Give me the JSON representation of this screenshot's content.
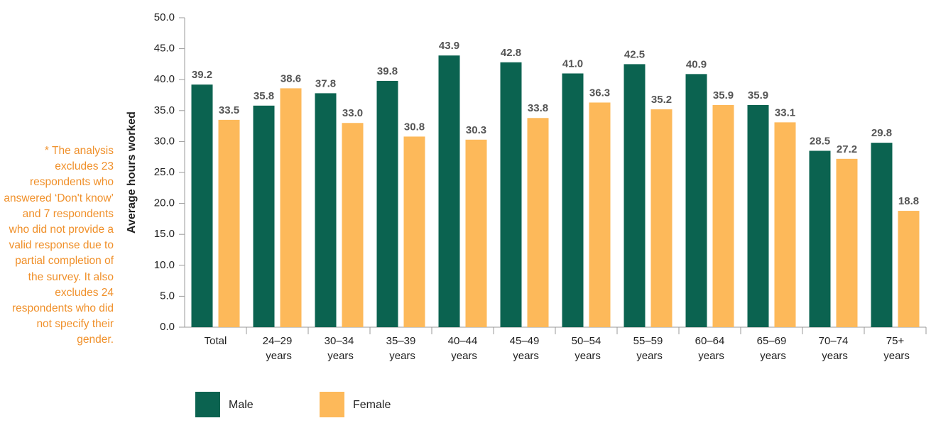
{
  "chart_data": {
    "type": "bar",
    "y_label": "Average hours worked",
    "note": "* The analysis excludes 23 respondents who answered ‘Don't know’ and 7 respondents who did not provide a valid response due to partial completion of the survey. It also excludes 24 respondents who did not specify their gender.",
    "categories": [
      "Total",
      "24–29 years",
      "30–34 years",
      "35–39 years",
      "40–44 years",
      "45–49 years",
      "50–54 years",
      "55–59 years",
      "60–64 years",
      "65–69 years",
      "70–74 years",
      "75+ years"
    ],
    "series": [
      {
        "name": "Male",
        "color": "#0b6350",
        "values": [
          39.2,
          35.8,
          37.8,
          39.8,
          43.9,
          42.8,
          41,
          42.5,
          40.9,
          35.9,
          28.5,
          29.8
        ],
        "value_labels": [
          "39.2",
          "35.8",
          "37.8",
          "39.8",
          "43.9",
          "42.8",
          "41.0",
          "42.5",
          "40.9",
          "35.9",
          "28.5",
          "29.8"
        ]
      },
      {
        "name": "Female",
        "color": "#fdb95a",
        "values": [
          33.5,
          38.6,
          33,
          30.8,
          30.3,
          33.8,
          36.3,
          35.2,
          35.9,
          33.1,
          27.2,
          18.8
        ],
        "value_labels": [
          "33.5",
          "38.6",
          "33.0",
          "30.8",
          "30.3",
          "33.8",
          "36.3",
          "35.2",
          "35.9",
          "33.1",
          "27.2",
          "18.8"
        ]
      }
    ],
    "ylim": [
      0,
      50
    ],
    "yticks": [
      {
        "value": 0,
        "label": "0.0"
      },
      {
        "value": 5,
        "label": "5.0"
      },
      {
        "value": 10,
        "label": "10.0"
      },
      {
        "value": 15,
        "label": "15.0"
      },
      {
        "value": 20,
        "label": "20.0"
      },
      {
        "value": 25,
        "label": "25.0"
      },
      {
        "value": 30,
        "label": "30.0"
      },
      {
        "value": 35,
        "label": "35.0"
      },
      {
        "value": 40,
        "label": "40.0"
      },
      {
        "value": 45,
        "label": "45.0"
      },
      {
        "value": 50,
        "label": "50.0"
      }
    ],
    "legend": "bottom-left"
  }
}
